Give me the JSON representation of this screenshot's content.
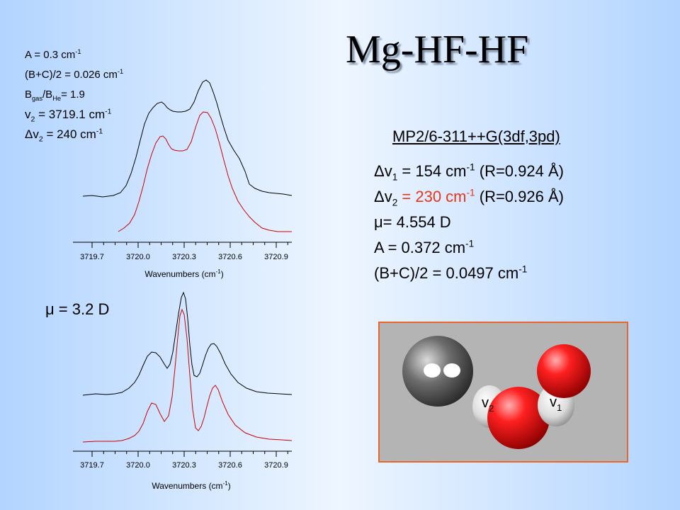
{
  "title": "Mg-HF-HF",
  "exp_params": {
    "line1": "A = 0.3 cm",
    "line1_sup": "-1",
    "line2": "(B+C)/2 = 0.026 cm",
    "line2_sup": "-1",
    "line3_a": "B",
    "line3_a_sub": "gas",
    "line3_b": "/B",
    "line3_b_sub": "He",
    "line3_c": "= 1.9",
    "line4_a": "v",
    "line4_a_sub": "2",
    "line4_b": " = 3719.1 cm",
    "line4_sup": "-1",
    "line5_a": "Δv",
    "line5_a_sub": "2",
    "line5_b": " = 240 cm",
    "line5_sup": "-1"
  },
  "calc": {
    "method": "MP2/6-311++G(3df,3pd)",
    "dv1_a": "Δv",
    "dv1_sub": "1",
    "dv1_b": " = 154 cm",
    "dv1_sup": "-1",
    "dv1_c": " (R=0.924 Å)",
    "dv2_a": "Δv",
    "dv2_sub": "2",
    "dv2_red": " = 230 cm",
    "dv2_sup": "-1",
    "dv2_c": " (R=0.926 Å)",
    "mu": "μ= 4.554 D",
    "A_a": "A = 0.372 cm",
    "A_sup": "-1",
    "BC_a": "(B+C)/2 = 0.0497 cm",
    "BC_sup": "-1"
  },
  "mu_label": "μ = 3.2 D",
  "top_axis": {
    "ticks": [
      "3719.7",
      "3720.0",
      "3720.3",
      "3720.6",
      "3720.9"
    ],
    "xlabel_a": "Wavenumbers (cm",
    "xlabel_sup": "-1",
    "xlabel_b": ")"
  },
  "bottom_axis": {
    "ticks": [
      "3719.7",
      "3720.0",
      "3720.3",
      "3720.6",
      "3720.9"
    ],
    "xlabel_a": "Wavenumbers (cm",
    "xlabel_sup": "-1",
    "xlabel_b": ")"
  },
  "molecule": {
    "label_v2_a": "v",
    "label_v2_sub": "2",
    "label_v1_a": "v",
    "label_v1_sub": "1"
  },
  "colors": {
    "experimental": "#000000",
    "simulated": "#cc0000",
    "highlight": "#e8341a"
  }
}
